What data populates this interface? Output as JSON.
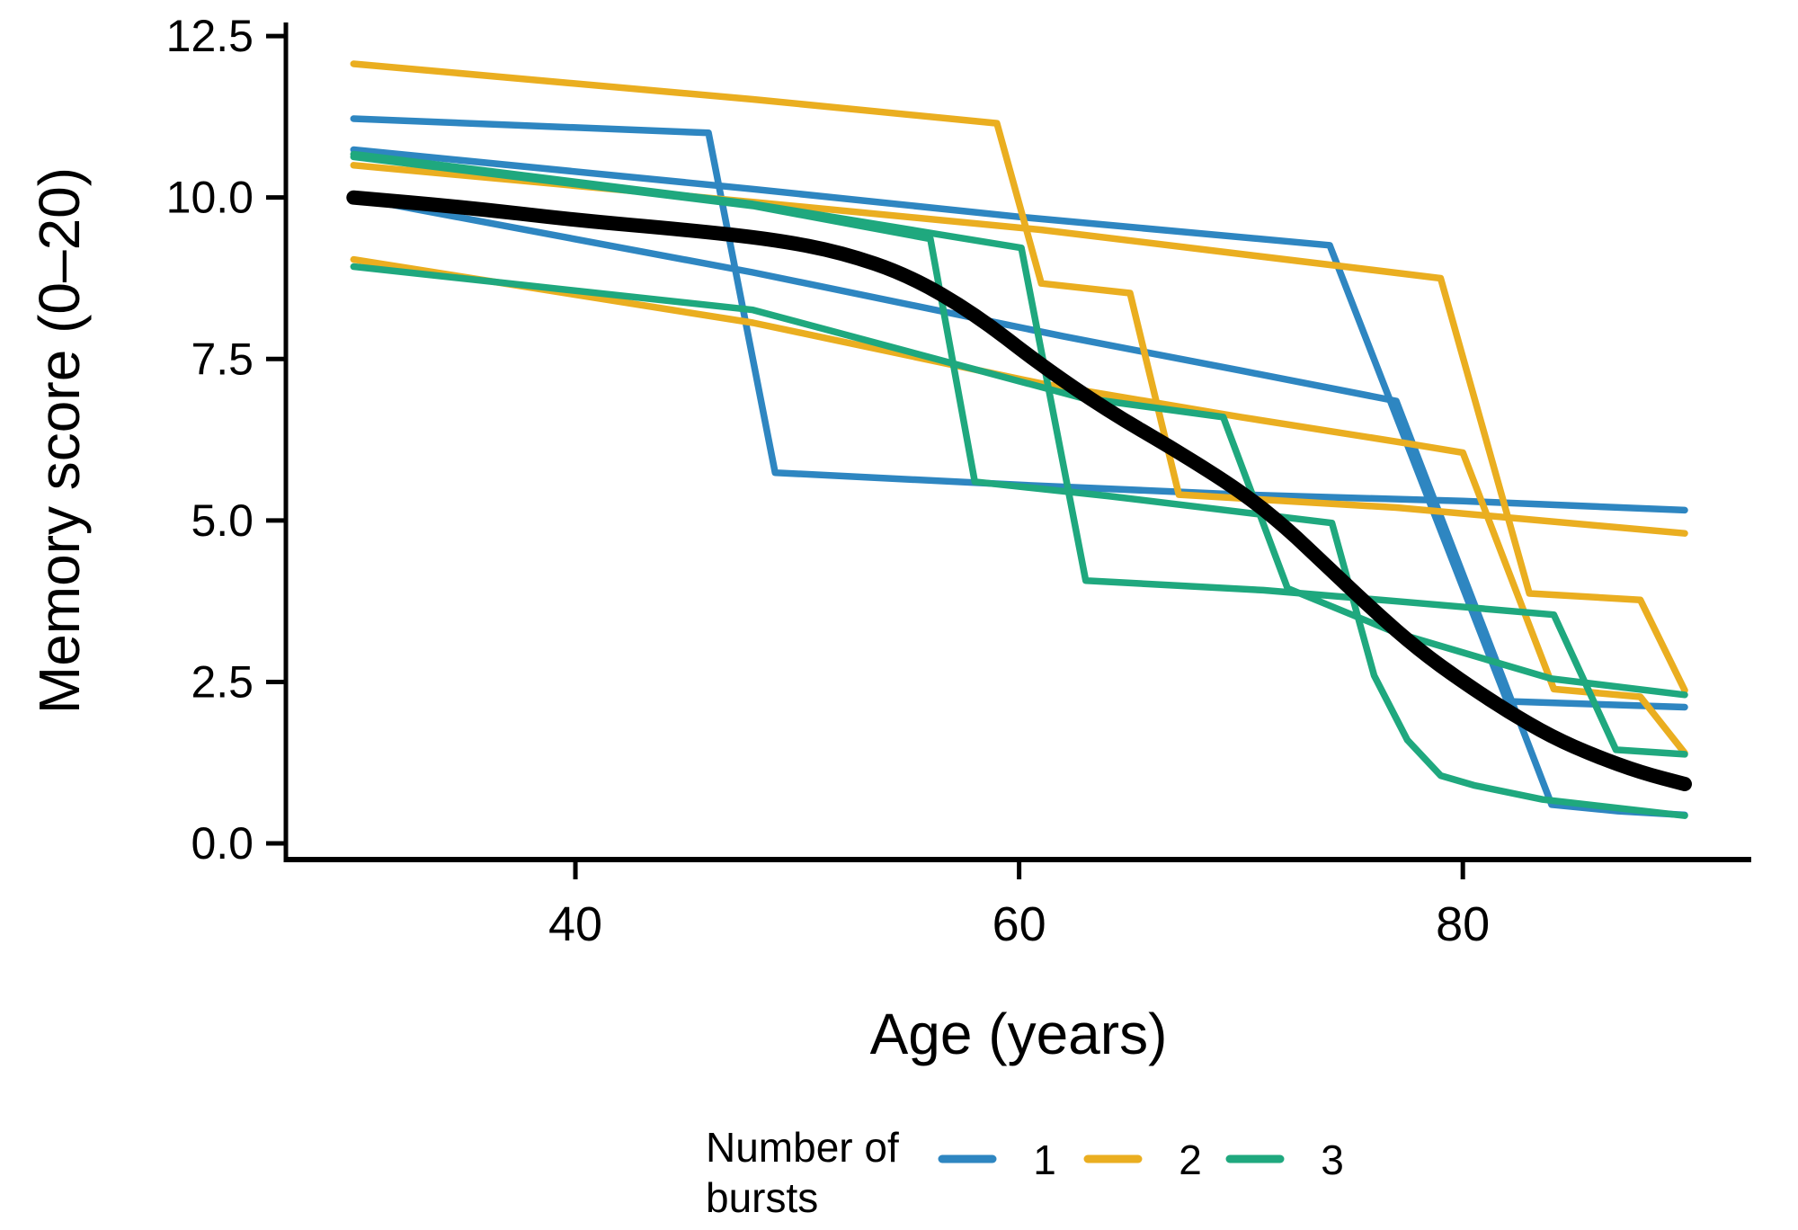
{
  "chart_data": {
    "type": "line",
    "title": "",
    "xlabel": "Age (years)",
    "ylabel": "Memory score (0–20)",
    "xlim": [
      26.95,
      93.0
    ],
    "ylim": [
      -0.25,
      12.71
    ],
    "grid": false,
    "x_ticks": [
      {
        "value": 40,
        "label": "40"
      },
      {
        "value": 60,
        "label": "60"
      },
      {
        "value": 80,
        "label": "80"
      }
    ],
    "y_ticks": [
      {
        "value": 0.0,
        "label": "0.0"
      },
      {
        "value": 2.5,
        "label": "2.5"
      },
      {
        "value": 5.0,
        "label": "5.0"
      },
      {
        "value": 7.5,
        "label": "7.5"
      },
      {
        "value": 10.0,
        "label": "10.0"
      },
      {
        "value": 12.5,
        "label": "12.5"
      }
    ],
    "colors": {
      "bursts_1": "#2E86C1",
      "bursts_2": "#EAAE20",
      "bursts_3": "#1FA87E",
      "mean": "#000000"
    },
    "legend": {
      "position": "bottom",
      "title_line1": "Number of",
      "title_line2": "bursts",
      "items": [
        {
          "label": "1",
          "group": "bursts_1"
        },
        {
          "label": "2",
          "group": "bursts_2"
        },
        {
          "label": "3",
          "group": "bursts_3"
        }
      ]
    },
    "series": [
      {
        "id": "blue-1",
        "group": "bursts_1",
        "points": [
          [
            30,
            11.22
          ],
          [
            46,
            11.0
          ],
          [
            49,
            5.74
          ],
          [
            60,
            5.55
          ],
          [
            70,
            5.4
          ],
          [
            80,
            5.3
          ],
          [
            90,
            5.16
          ]
        ]
      },
      {
        "id": "blue-2",
        "group": "bursts_1",
        "points": [
          [
            30,
            10.74
          ],
          [
            48,
            10.13
          ],
          [
            60,
            9.7
          ],
          [
            74,
            9.26
          ],
          [
            82,
            2.2
          ],
          [
            90,
            2.11
          ]
        ]
      },
      {
        "id": "blue-3",
        "group": "bursts_1",
        "points": [
          [
            30,
            10.0
          ],
          [
            48,
            8.84
          ],
          [
            62,
            7.85
          ],
          [
            70,
            7.32
          ],
          [
            77,
            6.85
          ],
          [
            84,
            0.6
          ],
          [
            87,
            0.5
          ],
          [
            90,
            0.44
          ]
        ]
      },
      {
        "id": "yellow-1",
        "group": "bursts_2",
        "points": [
          [
            30,
            12.07
          ],
          [
            48,
            11.52
          ],
          [
            59,
            11.15
          ],
          [
            61,
            8.67
          ],
          [
            65,
            8.52
          ],
          [
            67.2,
            5.4
          ],
          [
            77,
            5.2
          ],
          [
            90,
            4.8
          ]
        ]
      },
      {
        "id": "yellow-2",
        "group": "bursts_2",
        "points": [
          [
            30,
            10.5
          ],
          [
            48,
            9.93
          ],
          [
            61,
            9.5
          ],
          [
            73,
            9.0
          ],
          [
            79,
            8.75
          ],
          [
            83,
            3.87
          ],
          [
            88,
            3.77
          ],
          [
            90,
            2.37
          ]
        ]
      },
      {
        "id": "yellow-3",
        "group": "bursts_2",
        "points": [
          [
            30,
            9.04
          ],
          [
            48,
            8.06
          ],
          [
            61,
            7.12
          ],
          [
            70,
            6.6
          ],
          [
            77,
            6.22
          ],
          [
            80,
            6.05
          ],
          [
            84.1,
            2.39
          ],
          [
            88,
            2.27
          ],
          [
            90,
            1.4
          ]
        ]
      },
      {
        "id": "green-1",
        "group": "bursts_3",
        "points": [
          [
            30,
            10.67
          ],
          [
            48,
            9.9
          ],
          [
            60.1,
            9.22
          ],
          [
            63,
            4.07
          ],
          [
            71,
            3.92
          ],
          [
            77,
            3.75
          ],
          [
            84.1,
            3.54
          ],
          [
            86.9,
            1.45
          ],
          [
            90,
            1.38
          ]
        ]
      },
      {
        "id": "green-2",
        "group": "bursts_3",
        "points": [
          [
            30,
            10.63
          ],
          [
            48,
            9.87
          ],
          [
            56,
            9.36
          ],
          [
            58,
            5.6
          ],
          [
            64,
            5.38
          ],
          [
            74.1,
            4.96
          ],
          [
            76,
            2.6
          ],
          [
            77.5,
            1.6
          ],
          [
            79,
            1.05
          ],
          [
            80.5,
            0.9
          ],
          [
            83.6,
            0.68
          ],
          [
            90,
            0.43
          ]
        ]
      },
      {
        "id": "green-3",
        "group": "bursts_3",
        "points": [
          [
            30,
            8.93
          ],
          [
            48,
            8.26
          ],
          [
            62.8,
            6.9
          ],
          [
            69.2,
            6.6
          ],
          [
            72.1,
            3.95
          ],
          [
            77,
            3.26
          ],
          [
            84,
            2.55
          ],
          [
            90,
            2.3
          ]
        ]
      }
    ],
    "mean_curve": {
      "group": "mean",
      "points": [
        [
          30,
          10.0
        ],
        [
          35,
          9.85
        ],
        [
          40,
          9.65
        ],
        [
          45,
          9.5
        ],
        [
          49,
          9.35
        ],
        [
          52,
          9.15
        ],
        [
          55,
          8.8
        ],
        [
          58,
          8.2
        ],
        [
          61,
          7.4
        ],
        [
          64,
          6.7
        ],
        [
          67,
          6.1
        ],
        [
          70,
          5.45
        ],
        [
          72,
          4.9
        ],
        [
          74,
          4.25
        ],
        [
          76,
          3.6
        ],
        [
          78,
          3.0
        ],
        [
          80,
          2.5
        ],
        [
          82,
          2.05
        ],
        [
          84,
          1.65
        ],
        [
          86,
          1.35
        ],
        [
          88,
          1.1
        ],
        [
          90,
          0.92
        ]
      ]
    }
  }
}
